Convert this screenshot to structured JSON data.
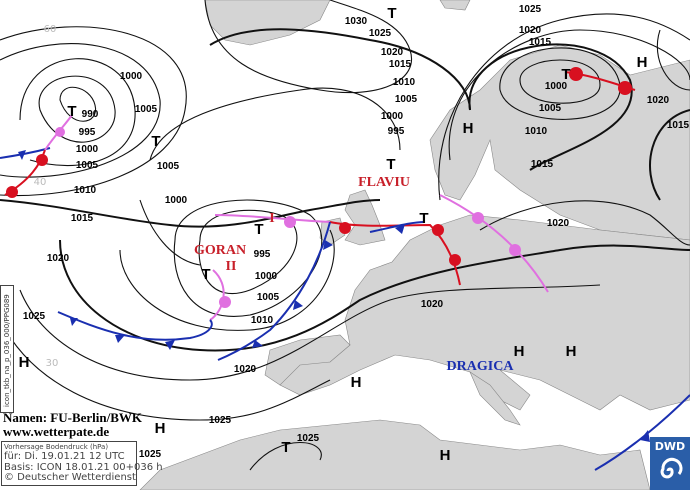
{
  "map": {
    "title": "Vorhersage Bodendruck (hPa)",
    "valid_time": "für:  Di. 19.01.21  12 UTC",
    "base_run": "Basis: ICON  18.01.21 00+036 h",
    "copyright": "© Deutscher Wetterdienst",
    "names_credit": "Namen: FU-Berlin/BWK",
    "website": "www.wetterpate.de",
    "model_code": "icon_tkb_na_p_036_000/PPG089",
    "logo_text": "DWD",
    "isobar_labels": [
      "1030",
      "1025",
      "1025",
      "1020",
      "1015",
      "1020",
      "1015",
      "1010",
      "1005",
      "1000",
      "995",
      "1000",
      "1005",
      "990",
      "995",
      "1000",
      "1005",
      "1010",
      "1015",
      "1005",
      "1000",
      "995",
      "1000",
      "1005",
      "1010",
      "1020",
      "1025",
      "1020",
      "1020",
      "1000",
      "1005",
      "1010",
      "1015",
      "1020",
      "1020",
      "1015",
      "1025",
      "1025",
      "1025"
    ],
    "high_labels": [
      "H",
      "H",
      "H",
      "H",
      "H",
      "H",
      "H",
      "H"
    ],
    "low_labels": [
      "T",
      "T",
      "T",
      "T",
      "T",
      "T",
      "T",
      "T"
    ],
    "system_names": [
      {
        "text": "FLAVIU",
        "color": "#c8202a"
      },
      {
        "text": "I",
        "color": "#c8202a"
      },
      {
        "text": "GORAN",
        "color": "#c8202a"
      },
      {
        "text": "II",
        "color": "#c8202a"
      },
      {
        "text": "DRAGICA",
        "color": "#1a2fb0"
      }
    ],
    "latitude_labels": [
      "60",
      "40",
      "30"
    ],
    "colors": {
      "land": "#d4d4d4",
      "sea": "#ffffff",
      "cold_front": "#1a2fb0",
      "warm_front": "#d81020",
      "occlusion": "#e070e0",
      "logo": "#2a5ea8"
    }
  }
}
